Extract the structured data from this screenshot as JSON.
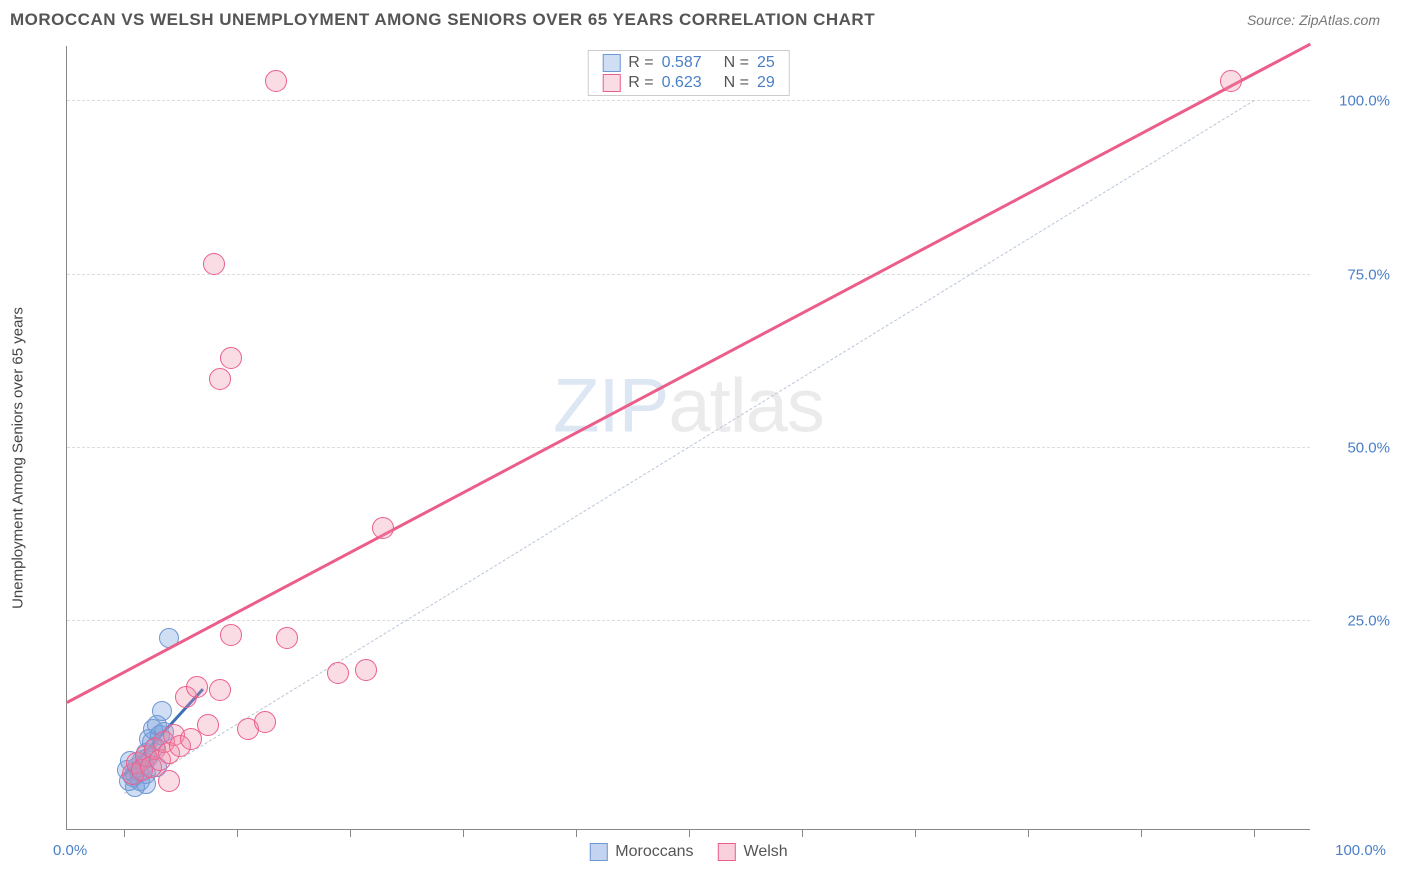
{
  "header": {
    "title": "MOROCCAN VS WELSH UNEMPLOYMENT AMONG SENIORS OVER 65 YEARS CORRELATION CHART",
    "source_prefix": "Source: ",
    "source": "ZipAtlas.com"
  },
  "chart": {
    "type": "scatter",
    "ylabel": "Unemployment Among Seniors over 65 years",
    "xlim": [
      -5,
      105
    ],
    "ylim": [
      -5,
      108
    ],
    "x_axis": {
      "min_label": "0.0%",
      "max_label": "100.0%",
      "tick_positions_pct": [
        0,
        10,
        20,
        30,
        40,
        50,
        60,
        70,
        80,
        90,
        100
      ]
    },
    "y_axis": {
      "grid_values": [
        25,
        50,
        75,
        100
      ],
      "labels": [
        "25.0%",
        "50.0%",
        "75.0%",
        "100.0%"
      ]
    },
    "grid_color": "#dddddd",
    "background_color": "#ffffff",
    "axis_color": "#888888",
    "tick_label_color": "#4a7fc7",
    "diagonal_ref": {
      "dash": "6,5",
      "color": "#b9c6da",
      "width": 1
    },
    "watermark": {
      "text_a": "ZIP",
      "text_b": "atlas"
    },
    "series": [
      {
        "name": "Moroccans",
        "color_fill": "rgba(120,160,220,0.35)",
        "color_stroke": "#6e97d4",
        "marker_radius": 10,
        "R": "0.587",
        "N": "25",
        "trend": {
          "x1": 0,
          "y1": 2.5,
          "x2": 7,
          "y2": 15,
          "color": "#3f6fb8",
          "width": 3
        },
        "points": [
          {
            "x": 0.5,
            "y": 2.0
          },
          {
            "x": 0.8,
            "y": 2.5
          },
          {
            "x": 1.0,
            "y": 3.0
          },
          {
            "x": 1.2,
            "y": 4.0
          },
          {
            "x": 1.4,
            "y": 3.2
          },
          {
            "x": 1.6,
            "y": 5.0
          },
          {
            "x": 1.8,
            "y": 4.2
          },
          {
            "x": 2.0,
            "y": 6.0
          },
          {
            "x": 2.2,
            "y": 5.2
          },
          {
            "x": 2.3,
            "y": 8.0
          },
          {
            "x": 2.5,
            "y": 7.5
          },
          {
            "x": 2.6,
            "y": 9.5
          },
          {
            "x": 2.8,
            "y": 6.8
          },
          {
            "x": 3.0,
            "y": 10.0
          },
          {
            "x": 3.2,
            "y": 8.5
          },
          {
            "x": 3.4,
            "y": 12.0
          },
          {
            "x": 3.6,
            "y": 9.0
          },
          {
            "x": 1.0,
            "y": 1.0
          },
          {
            "x": 0.3,
            "y": 3.5
          },
          {
            "x": 0.6,
            "y": 4.8
          },
          {
            "x": 1.5,
            "y": 2.0
          },
          {
            "x": 2.0,
            "y": 3.0
          },
          {
            "x": 3.0,
            "y": 4.0
          },
          {
            "x": 2.0,
            "y": 1.5
          },
          {
            "x": 4.0,
            "y": 22.5
          }
        ]
      },
      {
        "name": "Welsh",
        "color_fill": "rgba(240,140,170,0.30)",
        "color_stroke": "#ec5e8a",
        "marker_radius": 11,
        "R": "0.623",
        "N": "29",
        "trend": {
          "x1": -5,
          "y1": 13,
          "x2": 105,
          "y2": 108,
          "color": "#ec5e8a",
          "width": 3
        },
        "points": [
          {
            "x": 0.8,
            "y": 3.0
          },
          {
            "x": 1.2,
            "y": 4.5
          },
          {
            "x": 1.6,
            "y": 3.5
          },
          {
            "x": 2.0,
            "y": 5.5
          },
          {
            "x": 2.4,
            "y": 4.0
          },
          {
            "x": 2.8,
            "y": 6.5
          },
          {
            "x": 3.2,
            "y": 5.0
          },
          {
            "x": 3.6,
            "y": 7.5
          },
          {
            "x": 4.0,
            "y": 6.0
          },
          {
            "x": 4.5,
            "y": 8.5
          },
          {
            "x": 5.0,
            "y": 7.0
          },
          {
            "x": 5.5,
            "y": 14.0
          },
          {
            "x": 6.0,
            "y": 8.0
          },
          {
            "x": 6.5,
            "y": 15.5
          },
          {
            "x": 7.5,
            "y": 10.0
          },
          {
            "x": 8.5,
            "y": 15.0
          },
          {
            "x": 9.5,
            "y": 23.0
          },
          {
            "x": 11.0,
            "y": 9.5
          },
          {
            "x": 12.5,
            "y": 10.5
          },
          {
            "x": 14.5,
            "y": 22.5
          },
          {
            "x": 19.0,
            "y": 17.5
          },
          {
            "x": 21.5,
            "y": 18.0
          },
          {
            "x": 23.0,
            "y": 38.5
          },
          {
            "x": 8.5,
            "y": 60.0
          },
          {
            "x": 9.5,
            "y": 63.0
          },
          {
            "x": 8.0,
            "y": 76.5
          },
          {
            "x": 13.5,
            "y": 103.0
          },
          {
            "x": 98.0,
            "y": 103.0
          },
          {
            "x": 4.0,
            "y": 2.0
          }
        ]
      }
    ],
    "legend_bottom": [
      {
        "label": "Moroccans",
        "fill": "rgba(120,160,220,0.45)",
        "stroke": "#6e97d4"
      },
      {
        "label": "Welsh",
        "fill": "rgba(240,140,170,0.40)",
        "stroke": "#ec5e8a"
      }
    ]
  }
}
